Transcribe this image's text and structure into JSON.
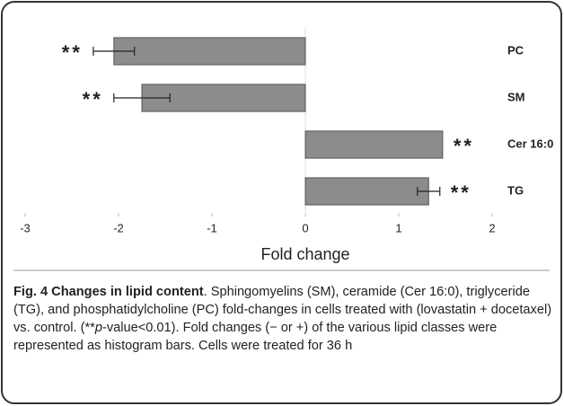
{
  "chart_data": {
    "type": "hbar",
    "categories": [
      "PC",
      "SM",
      "Cer 16:0",
      "TG"
    ],
    "values": [
      -2.05,
      -1.75,
      1.47,
      1.32
    ],
    "errors": [
      0.22,
      0.3,
      null,
      0.12
    ],
    "annotations": [
      "**",
      "**",
      "**",
      "**"
    ],
    "color": "#8c8c8c",
    "xlabel": "Fold change",
    "xlim": [
      -3,
      2
    ],
    "xticks": [
      -3,
      -2,
      -1,
      0,
      1,
      2
    ]
  },
  "caption": {
    "bold": "Fig. 4 Changes in lipid content",
    "text": ". Sphingomyelins (SM), ceramide (Cer 16:0), triglyceride (TG), and phosphatidylcholine (PC) fold-changes in cells treated with (lovastatin + docetaxel) vs. control. (**",
    "italic": "p",
    "text2": "-value<0.01). Fold changes (− or +) of the various lipid classes were represented as histogram bars. Cells were treated for 36 h"
  }
}
